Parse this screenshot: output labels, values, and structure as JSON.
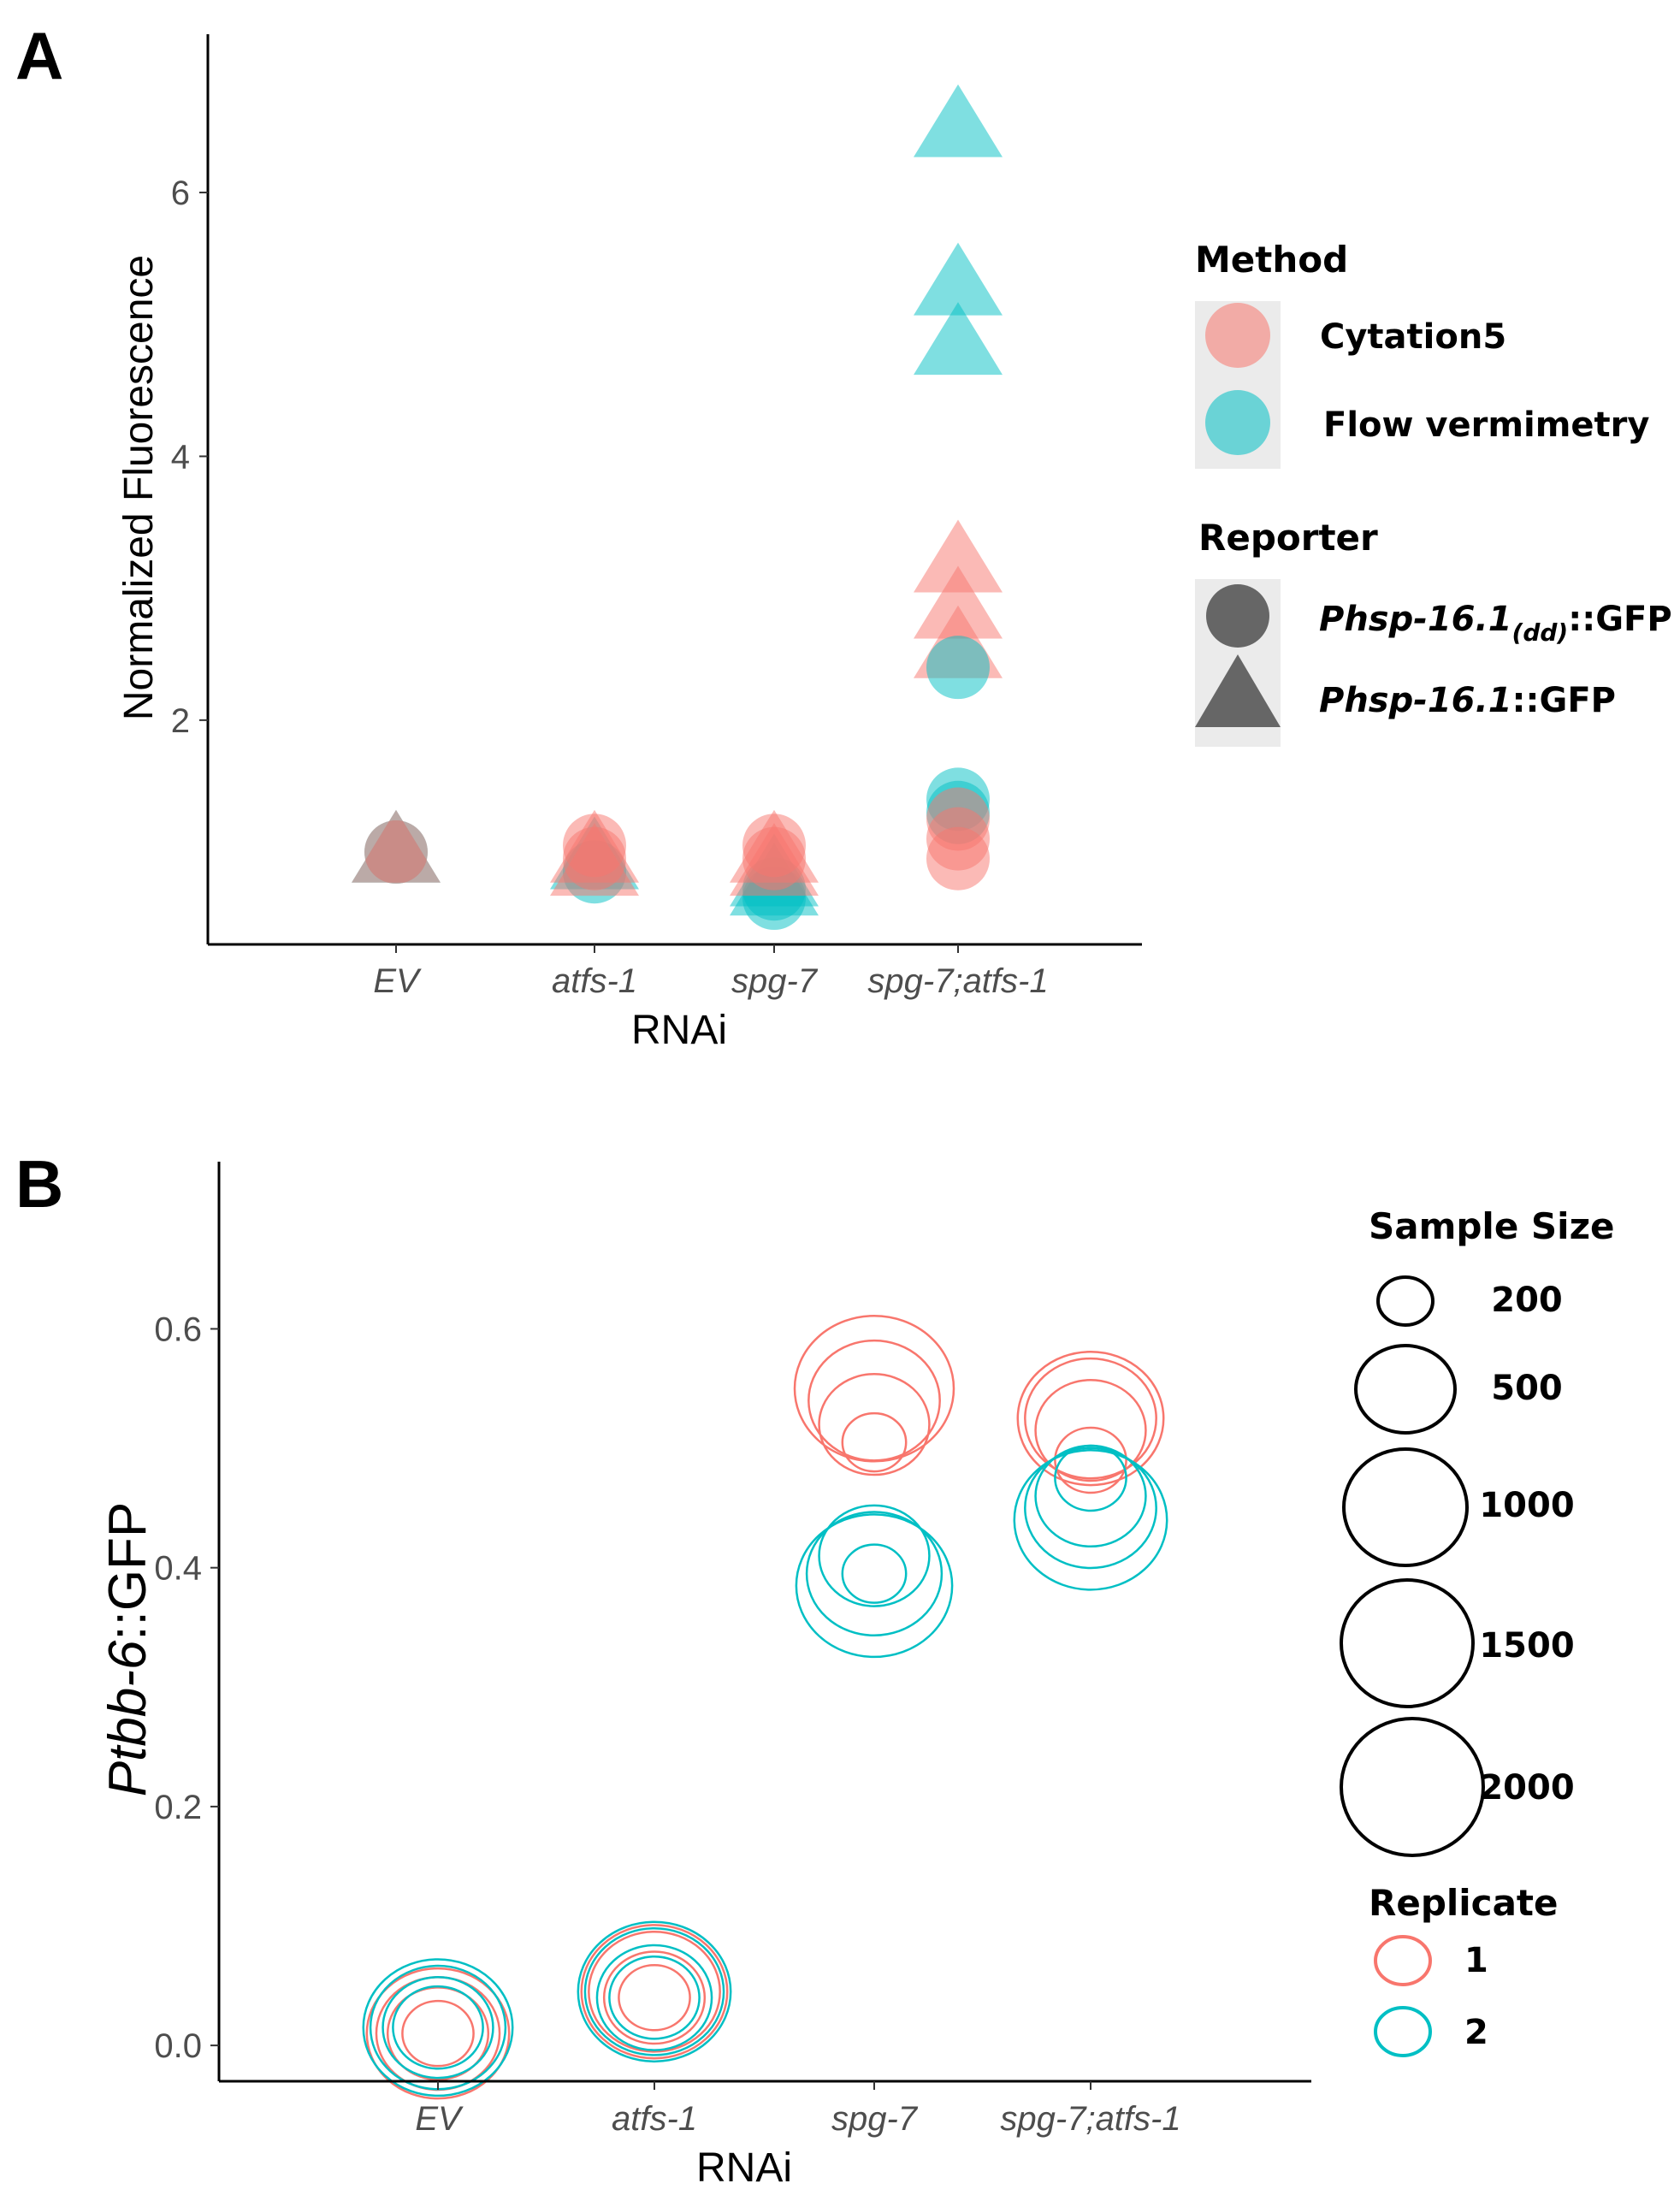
{
  "colors": {
    "cytation5": "#F8766D",
    "flow": "#00BFC4",
    "reporter": "#666666",
    "axis": "#000000",
    "legend_key_bg": "#EBEBEB"
  },
  "panelA": {
    "letter": "A",
    "legend": {
      "method_title": "Method",
      "method_items": [
        {
          "label": "Cytation5",
          "color": "#F8766D"
        },
        {
          "label": "Flow vermimetry",
          "color": "#00BFC4"
        }
      ],
      "reporter_title": "Reporter",
      "reporter_items": [
        {
          "prefix": "Phsp-16.1",
          "subscript": "(dd)",
          "suffix": "::GFP",
          "shape": "circle"
        },
        {
          "prefix": "Phsp-16.1",
          "subscript": "",
          "suffix": "::GFP",
          "shape": "triangle"
        }
      ]
    }
  },
  "panelB": {
    "letter": "B",
    "legend": {
      "size_title": "Sample Size",
      "size_items": [
        "200",
        "500",
        "1000",
        "1500",
        "2000"
      ],
      "replicate_title": "Replicate",
      "replicate_items": [
        {
          "label": "1",
          "color": "#F8766D"
        },
        {
          "label": "2",
          "color": "#00BFC4"
        }
      ]
    }
  },
  "chart_data": [
    {
      "type": "scatter",
      "xlabel": "RNAi",
      "ylabel": "Normalized Fluorescence",
      "categories": [
        "EV",
        "atfs-1",
        "spg-7",
        "spg-7;atfs-1"
      ],
      "yticks": [
        2,
        4,
        6
      ],
      "ylim": [
        0.3,
        7.2
      ],
      "grid": false,
      "legend_position": "right",
      "points": [
        {
          "x": "EV",
          "y": 1.0,
          "method": "Flow vermimetry",
          "reporter": "Phsp-16.1(dd)::GFP"
        },
        {
          "x": "EV",
          "y": 1.0,
          "method": "Flow vermimetry",
          "reporter": "Phsp-16.1::GFP"
        },
        {
          "x": "EV",
          "y": 1.0,
          "method": "Cytation5",
          "reporter": "Phsp-16.1::GFP"
        },
        {
          "x": "EV",
          "y": 1.0,
          "method": "Cytation5",
          "reporter": "Phsp-16.1(dd)::GFP"
        },
        {
          "x": "atfs-1",
          "y": 0.85,
          "method": "Flow vermimetry",
          "reporter": "Phsp-16.1(dd)::GFP"
        },
        {
          "x": "atfs-1",
          "y": 0.95,
          "method": "Flow vermimetry",
          "reporter": "Phsp-16.1::GFP"
        },
        {
          "x": "atfs-1",
          "y": 0.9,
          "method": "Cytation5",
          "reporter": "Phsp-16.1::GFP"
        },
        {
          "x": "atfs-1",
          "y": 1.0,
          "method": "Cytation5",
          "reporter": "Phsp-16.1::GFP"
        },
        {
          "x": "atfs-1",
          "y": 1.05,
          "method": "Cytation5",
          "reporter": "Phsp-16.1(dd)::GFP"
        },
        {
          "x": "atfs-1",
          "y": 0.95,
          "method": "Cytation5",
          "reporter": "Phsp-16.1(dd)::GFP"
        },
        {
          "x": "spg-7",
          "y": 0.65,
          "method": "Flow vermimetry",
          "reporter": "Phsp-16.1(dd)::GFP"
        },
        {
          "x": "spg-7",
          "y": 0.72,
          "method": "Flow vermimetry",
          "reporter": "Phsp-16.1(dd)::GFP"
        },
        {
          "x": "spg-7",
          "y": 0.75,
          "method": "Flow vermimetry",
          "reporter": "Phsp-16.1::GFP"
        },
        {
          "x": "spg-7",
          "y": 0.82,
          "method": "Flow vermimetry",
          "reporter": "Phsp-16.1::GFP"
        },
        {
          "x": "spg-7",
          "y": 0.9,
          "method": "Cytation5",
          "reporter": "Phsp-16.1::GFP"
        },
        {
          "x": "spg-7",
          "y": 1.0,
          "method": "Cytation5",
          "reporter": "Phsp-16.1::GFP"
        },
        {
          "x": "spg-7",
          "y": 1.05,
          "method": "Cytation5",
          "reporter": "Phsp-16.1(dd)::GFP"
        },
        {
          "x": "spg-7",
          "y": 0.95,
          "method": "Cytation5",
          "reporter": "Phsp-16.1(dd)::GFP"
        },
        {
          "x": "spg-7;atfs-1",
          "y": 6.5,
          "method": "Flow vermimetry",
          "reporter": "Phsp-16.1::GFP"
        },
        {
          "x": "spg-7;atfs-1",
          "y": 5.3,
          "method": "Flow vermimetry",
          "reporter": "Phsp-16.1::GFP"
        },
        {
          "x": "spg-7;atfs-1",
          "y": 4.85,
          "method": "Flow vermimetry",
          "reporter": "Phsp-16.1::GFP"
        },
        {
          "x": "spg-7;atfs-1",
          "y": 3.2,
          "method": "Cytation5",
          "reporter": "Phsp-16.1::GFP"
        },
        {
          "x": "spg-7;atfs-1",
          "y": 2.85,
          "method": "Cytation5",
          "reporter": "Phsp-16.1::GFP"
        },
        {
          "x": "spg-7;atfs-1",
          "y": 2.55,
          "method": "Cytation5",
          "reporter": "Phsp-16.1::GFP"
        },
        {
          "x": "spg-7;atfs-1",
          "y": 2.4,
          "method": "Flow vermimetry",
          "reporter": "Phsp-16.1(dd)::GFP"
        },
        {
          "x": "spg-7;atfs-1",
          "y": 1.4,
          "method": "Flow vermimetry",
          "reporter": "Phsp-16.1(dd)::GFP"
        },
        {
          "x": "spg-7;atfs-1",
          "y": 1.3,
          "method": "Flow vermimetry",
          "reporter": "Phsp-16.1(dd)::GFP"
        },
        {
          "x": "spg-7;atfs-1",
          "y": 1.25,
          "method": "Cytation5",
          "reporter": "Phsp-16.1(dd)::GFP"
        },
        {
          "x": "spg-7;atfs-1",
          "y": 1.1,
          "method": "Cytation5",
          "reporter": "Phsp-16.1(dd)::GFP"
        },
        {
          "x": "spg-7;atfs-1",
          "y": 0.95,
          "method": "Cytation5",
          "reporter": "Phsp-16.1(dd)::GFP"
        }
      ]
    },
    {
      "type": "scatter",
      "xlabel": "RNAi",
      "ylabel_italic": "Ptbb-6",
      "ylabel_suffix": "::GFP",
      "categories": [
        "EV",
        "atfs-1",
        "spg-7",
        "spg-7;atfs-1"
      ],
      "yticks": [
        "0.0",
        "0.2",
        "0.4",
        "0.6"
      ],
      "ylim": [
        -0.03,
        0.74
      ],
      "grid": false,
      "legend_position": "right",
      "points": [
        {
          "x": "EV",
          "y": 0.01,
          "replicate": "1",
          "size": 500
        },
        {
          "x": "EV",
          "y": 0.01,
          "replicate": "1",
          "size": 1000
        },
        {
          "x": "EV",
          "y": 0.01,
          "replicate": "1",
          "size": 1500
        },
        {
          "x": "EV",
          "y": 0.01,
          "replicate": "1",
          "size": 2000
        },
        {
          "x": "EV",
          "y": 0.015,
          "replicate": "2",
          "size": 800
        },
        {
          "x": "EV",
          "y": 0.015,
          "replicate": "2",
          "size": 1200
        },
        {
          "x": "EV",
          "y": 0.015,
          "replicate": "2",
          "size": 1800
        },
        {
          "x": "EV",
          "y": 0.015,
          "replicate": "2",
          "size": 2200
        },
        {
          "x": "atfs-1",
          "y": 0.04,
          "replicate": "1",
          "size": 500
        },
        {
          "x": "atfs-1",
          "y": 0.04,
          "replicate": "1",
          "size": 1000
        },
        {
          "x": "atfs-1",
          "y": 0.045,
          "replicate": "1",
          "size": 1700
        },
        {
          "x": "atfs-1",
          "y": 0.045,
          "replicate": "1",
          "size": 2100
        },
        {
          "x": "atfs-1",
          "y": 0.04,
          "replicate": "2",
          "size": 800
        },
        {
          "x": "atfs-1",
          "y": 0.04,
          "replicate": "2",
          "size": 1300
        },
        {
          "x": "atfs-1",
          "y": 0.045,
          "replicate": "2",
          "size": 1900
        },
        {
          "x": "atfs-1",
          "y": 0.045,
          "replicate": "2",
          "size": 2300
        },
        {
          "x": "spg-7",
          "y": 0.505,
          "replicate": "1",
          "size": 400
        },
        {
          "x": "spg-7",
          "y": 0.52,
          "replicate": "1",
          "size": 1200
        },
        {
          "x": "spg-7",
          "y": 0.54,
          "replicate": "1",
          "size": 1700
        },
        {
          "x": "spg-7",
          "y": 0.55,
          "replicate": "1",
          "size": 2500
        },
        {
          "x": "spg-7",
          "y": 0.395,
          "replicate": "2",
          "size": 400
        },
        {
          "x": "spg-7",
          "y": 0.41,
          "replicate": "2",
          "size": 1200
        },
        {
          "x": "spg-7",
          "y": 0.395,
          "replicate": "2",
          "size": 1800
        },
        {
          "x": "spg-7",
          "y": 0.385,
          "replicate": "2",
          "size": 2400
        },
        {
          "x": "spg-7;atfs-1",
          "y": 0.49,
          "replicate": "1",
          "size": 500
        },
        {
          "x": "spg-7;atfs-1",
          "y": 0.515,
          "replicate": "1",
          "size": 1200
        },
        {
          "x": "spg-7;atfs-1",
          "y": 0.525,
          "replicate": "1",
          "size": 1700
        },
        {
          "x": "spg-7;atfs-1",
          "y": 0.525,
          "replicate": "1",
          "size": 2100
        },
        {
          "x": "spg-7;atfs-1",
          "y": 0.475,
          "replicate": "2",
          "size": 500
        },
        {
          "x": "spg-7;atfs-1",
          "y": 0.46,
          "replicate": "2",
          "size": 1200
        },
        {
          "x": "spg-7;atfs-1",
          "y": 0.45,
          "replicate": "2",
          "size": 1700
        },
        {
          "x": "spg-7;atfs-1",
          "y": 0.44,
          "replicate": "2",
          "size": 2300
        }
      ]
    }
  ]
}
